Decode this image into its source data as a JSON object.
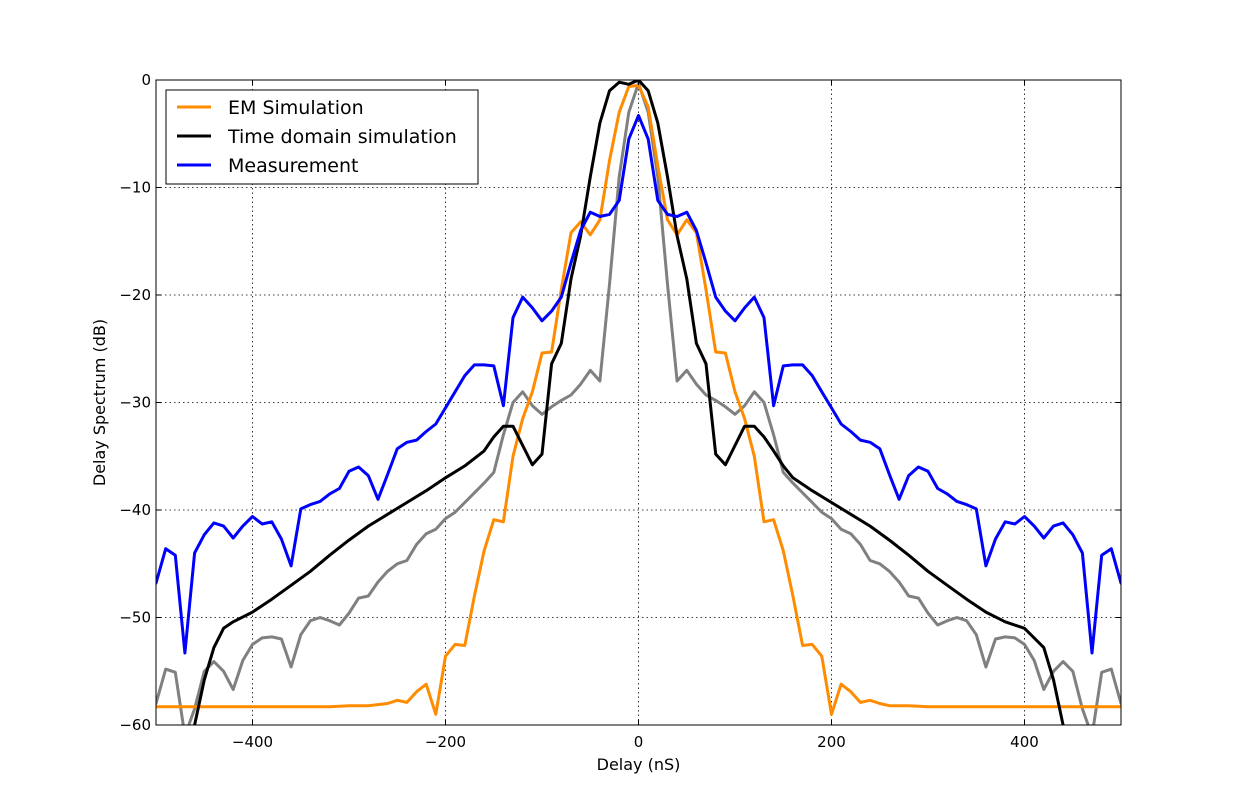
{
  "chart_data": {
    "type": "line",
    "title": "",
    "xlabel": "Delay (nS)",
    "ylabel": "Delay Spectrum (dB)",
    "xlim": [
      -500,
      500
    ],
    "ylim": [
      -60,
      0
    ],
    "xticks": [
      -400,
      -200,
      0,
      200,
      400
    ],
    "xtick_labels": [
      "−400",
      "−200",
      "0",
      "200",
      "400"
    ],
    "yticks": [
      0,
      -10,
      -20,
      -30,
      -40,
      -50,
      -60
    ],
    "ytick_labels": [
      "0",
      "−10",
      "−20",
      "−30",
      "−40",
      "−50",
      "−60"
    ],
    "grid": true,
    "legend_position": "top-left",
    "series": [
      {
        "name": "EM Simulation",
        "color": "#ff8c00",
        "in_legend": true,
        "x": [
          -500,
          -480,
          -460,
          -440,
          -420,
          -400,
          -380,
          -360,
          -340,
          -320,
          -300,
          -280,
          -260,
          -250,
          -240,
          -230,
          -220,
          -210,
          -200,
          -190,
          -180,
          -170,
          -160,
          -150,
          -140,
          -130,
          -120,
          -110,
          -100,
          -90,
          -80,
          -70,
          -60,
          -50,
          -40,
          -30,
          -20,
          -10,
          0,
          10,
          20,
          30,
          40,
          50,
          60,
          70,
          80,
          90,
          100,
          110,
          120,
          130,
          140,
          150,
          160,
          170,
          180,
          190,
          200,
          210,
          220,
          230,
          240,
          250,
          260,
          280,
          300,
          320,
          340,
          360,
          380,
          400,
          420,
          440,
          460,
          480,
          500
        ],
        "y": [
          -58.3,
          -58.3,
          -58.3,
          -58.3,
          -58.3,
          -58.3,
          -58.3,
          -58.3,
          -58.3,
          -58.3,
          -58.2,
          -58.2,
          -58.0,
          -57.7,
          -57.9,
          -56.9,
          -56.2,
          -59.0,
          -53.6,
          -52.5,
          -52.6,
          -48.0,
          -43.8,
          -40.9,
          -41.1,
          -35.0,
          -31.5,
          -29.0,
          -25.4,
          -25.3,
          -19.5,
          -14.2,
          -13.2,
          -14.4,
          -13.0,
          -7.5,
          -3.0,
          -0.6,
          -0.5,
          -2.5,
          -8.0,
          -13.0,
          -14.4,
          -13.0,
          -14.2,
          -19.5,
          -25.3,
          -25.4,
          -29.0,
          -31.5,
          -35.0,
          -41.1,
          -40.9,
          -43.8,
          -48.0,
          -52.6,
          -52.5,
          -53.6,
          -59.0,
          -56.2,
          -56.9,
          -57.9,
          -57.7,
          -58.0,
          -58.2,
          -58.2,
          -58.3,
          -58.3,
          -58.3,
          -58.3,
          -58.3,
          -58.3,
          -58.3,
          -58.3,
          -58.3,
          -58.3,
          -58.3
        ]
      },
      {
        "name": "Time domain simulation",
        "color": "#000000",
        "in_legend": true,
        "x": [
          -500,
          -480,
          -470,
          -460,
          -450,
          -440,
          -430,
          -420,
          -400,
          -380,
          -360,
          -340,
          -320,
          -300,
          -280,
          -260,
          -240,
          -220,
          -200,
          -180,
          -160,
          -150,
          -140,
          -130,
          -120,
          -110,
          -100,
          -90,
          -80,
          -70,
          -60,
          -50,
          -40,
          -30,
          -20,
          -10,
          0,
          10,
          20,
          30,
          40,
          50,
          60,
          70,
          80,
          90,
          100,
          110,
          120,
          130,
          140,
          150,
          160,
          180,
          200,
          220,
          240,
          260,
          280,
          300,
          320,
          340,
          360,
          380,
          400,
          420,
          430,
          440,
          450,
          460,
          470,
          480,
          500
        ],
        "y": [
          -61,
          -61,
          -61,
          -60.0,
          -55.8,
          -52.8,
          -51.0,
          -50.4,
          -49.5,
          -48.3,
          -47.0,
          -45.7,
          -44.2,
          -42.8,
          -41.5,
          -40.4,
          -39.3,
          -38.2,
          -37.0,
          -35.9,
          -34.5,
          -33.2,
          -32.2,
          -32.2,
          -34.0,
          -35.8,
          -34.8,
          -26.4,
          -24.5,
          -18.5,
          -14.5,
          -9.0,
          -4.0,
          -1.0,
          -0.2,
          -0.4,
          0.0,
          -1.0,
          -4.0,
          -9.0,
          -14.5,
          -18.5,
          -24.5,
          -26.4,
          -34.8,
          -35.8,
          -34.0,
          -32.2,
          -32.2,
          -33.2,
          -34.5,
          -35.9,
          -37.0,
          -38.2,
          -39.3,
          -40.4,
          -41.5,
          -42.8,
          -44.2,
          -45.7,
          -47.0,
          -48.3,
          -49.5,
          -50.4,
          -51.0,
          -52.8,
          -55.8,
          -60.0,
          -61,
          -61,
          -61,
          -61,
          -61
        ]
      },
      {
        "name": "Measurement",
        "color": "#0000ff",
        "in_legend": true,
        "x": [
          -500,
          -490,
          -480,
          -470,
          -460,
          -450,
          -440,
          -430,
          -420,
          -410,
          -400,
          -390,
          -380,
          -370,
          -360,
          -350,
          -340,
          -330,
          -320,
          -310,
          -300,
          -290,
          -280,
          -270,
          -260,
          -250,
          -240,
          -230,
          -220,
          -210,
          -200,
          -190,
          -180,
          -170,
          -160,
          -150,
          -140,
          -130,
          -120,
          -110,
          -100,
          -90,
          -80,
          -70,
          -60,
          -50,
          -40,
          -30,
          -20,
          -10,
          0,
          10,
          20,
          30,
          40,
          50,
          60,
          70,
          80,
          90,
          100,
          110,
          120,
          130,
          140,
          150,
          160,
          170,
          180,
          190,
          200,
          210,
          220,
          230,
          240,
          250,
          260,
          270,
          280,
          290,
          300,
          310,
          320,
          330,
          340,
          350,
          360,
          370,
          380,
          390,
          400,
          410,
          420,
          430,
          440,
          450,
          460,
          470,
          480,
          490,
          500
        ],
        "y": [
          -46.8,
          -43.6,
          -44.2,
          -53.3,
          -44.0,
          -42.3,
          -41.2,
          -41.5,
          -42.6,
          -41.5,
          -40.6,
          -41.3,
          -41.1,
          -42.7,
          -45.2,
          -39.9,
          -39.5,
          -39.2,
          -38.5,
          -38.0,
          -36.4,
          -36.0,
          -36.8,
          -39.0,
          -36.7,
          -34.3,
          -33.7,
          -33.5,
          -32.7,
          -32.0,
          -30.5,
          -29.0,
          -27.5,
          -26.5,
          -26.5,
          -26.6,
          -30.3,
          -22.1,
          -20.2,
          -21.2,
          -22.4,
          -21.5,
          -20.2,
          -17.0,
          -14.0,
          -12.3,
          -12.7,
          -12.5,
          -11.2,
          -5.5,
          -3.3,
          -5.5,
          -11.2,
          -12.5,
          -12.7,
          -12.3,
          -14.0,
          -17.0,
          -20.2,
          -21.5,
          -22.4,
          -21.2,
          -20.2,
          -22.1,
          -30.3,
          -26.6,
          -26.5,
          -26.5,
          -27.5,
          -29.0,
          -30.5,
          -32.0,
          -32.7,
          -33.5,
          -33.7,
          -34.3,
          -36.7,
          -39.0,
          -36.8,
          -36.0,
          -36.4,
          -38.0,
          -38.5,
          -39.2,
          -39.5,
          -39.9,
          -45.2,
          -42.7,
          -41.1,
          -41.3,
          -40.6,
          -41.5,
          -42.6,
          -41.5,
          -41.2,
          -42.3,
          -44.0,
          -53.3,
          -44.2,
          -43.6,
          -46.8
        ]
      },
      {
        "name": "",
        "color": "#808080",
        "in_legend": false,
        "x": [
          -500,
          -490,
          -480,
          -470,
          -460,
          -450,
          -440,
          -430,
          -420,
          -410,
          -400,
          -390,
          -380,
          -370,
          -360,
          -350,
          -340,
          -330,
          -320,
          -310,
          -300,
          -290,
          -280,
          -270,
          -260,
          -250,
          -240,
          -230,
          -220,
          -210,
          -200,
          -190,
          -180,
          -170,
          -160,
          -150,
          -140,
          -130,
          -120,
          -110,
          -100,
          -90,
          -80,
          -70,
          -60,
          -50,
          -40,
          -30,
          -20,
          -10,
          0,
          10,
          20,
          30,
          40,
          50,
          60,
          70,
          80,
          90,
          100,
          110,
          120,
          130,
          140,
          150,
          160,
          170,
          180,
          190,
          200,
          210,
          220,
          230,
          240,
          250,
          260,
          270,
          280,
          290,
          300,
          310,
          320,
          330,
          340,
          350,
          360,
          370,
          380,
          390,
          400,
          410,
          420,
          430,
          440,
          450,
          460,
          470,
          480,
          490,
          500
        ],
        "y": [
          -58.0,
          -54.8,
          -55.1,
          -61,
          -58.5,
          -55.0,
          -54.1,
          -55.0,
          -56.7,
          -54.0,
          -52.5,
          -51.9,
          -51.8,
          -52.0,
          -54.6,
          -51.6,
          -50.3,
          -50.0,
          -50.3,
          -50.7,
          -49.6,
          -48.2,
          -48.0,
          -46.7,
          -45.7,
          -45.0,
          -44.7,
          -43.2,
          -42.2,
          -41.8,
          -40.8,
          -40.2,
          -39.3,
          -38.4,
          -37.5,
          -36.5,
          -33.0,
          -30.0,
          -29.0,
          -30.3,
          -31.1,
          -30.4,
          -29.8,
          -29.3,
          -28.3,
          -27.0,
          -28.0,
          -19.0,
          -9.0,
          -3.0,
          -0.3,
          -3.0,
          -9.0,
          -19.0,
          -28.0,
          -27.0,
          -28.3,
          -29.3,
          -29.8,
          -30.4,
          -31.1,
          -30.3,
          -29.0,
          -30.0,
          -33.0,
          -36.5,
          -37.5,
          -38.4,
          -39.3,
          -40.2,
          -40.8,
          -41.8,
          -42.2,
          -43.2,
          -44.7,
          -45.0,
          -45.7,
          -46.7,
          -48.0,
          -48.2,
          -49.6,
          -50.7,
          -50.3,
          -50.0,
          -50.3,
          -51.6,
          -54.6,
          -52.0,
          -51.8,
          -51.9,
          -52.5,
          -54.0,
          -56.7,
          -55.0,
          -54.1,
          -55.0,
          -58.5,
          -61,
          -55.1,
          -54.8,
          -58.0
        ]
      }
    ]
  }
}
